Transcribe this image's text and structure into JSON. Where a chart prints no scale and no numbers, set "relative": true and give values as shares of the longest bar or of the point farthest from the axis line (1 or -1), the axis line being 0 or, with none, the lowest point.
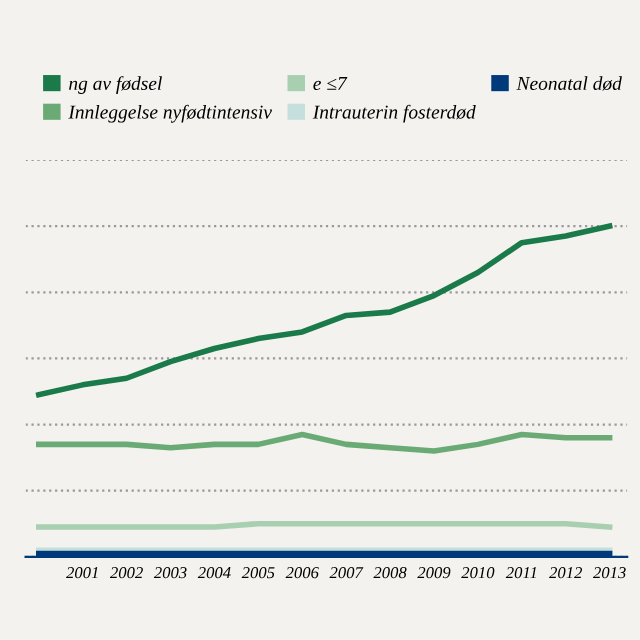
{
  "chart_data": {
    "type": "line",
    "relative": true,
    "grid": "y",
    "legend": "top",
    "marker": "none",
    "line_style": "solid",
    "categories": [
      null,
      "2001",
      "2002",
      "2003",
      "2004",
      "2005",
      "2006",
      "2007",
      "2008",
      "2009",
      "2010",
      "2011",
      "2012",
      "2013"
    ],
    "series": [
      {
        "name": "ng av fødsel",
        "color": "#1a7a4a",
        "values": [
          0.49,
          0.52,
          0.54,
          0.59,
          0.63,
          0.66,
          0.68,
          0.73,
          0.74,
          0.79,
          0.86,
          0.95,
          0.97,
          1.0
        ]
      },
      {
        "name": "Innleggelse nyfødtintensiv",
        "color": "#6aaa75",
        "values": [
          0.34,
          0.34,
          0.34,
          0.33,
          0.34,
          0.34,
          0.37,
          0.34,
          0.33,
          0.32,
          0.34,
          0.37,
          0.36,
          0.36
        ]
      },
      {
        "name": "e ≤7",
        "color": "#a8d0b0",
        "values": [
          0.09,
          0.09,
          0.09,
          0.09,
          0.09,
          0.1,
          0.1,
          0.1,
          0.1,
          0.1,
          0.1,
          0.1,
          0.1,
          0.09
        ]
      },
      {
        "name": "Intrauterin fosterdød",
        "color": "#c5e0dc",
        "values": [
          0.02,
          0.02,
          0.02,
          0.02,
          0.02,
          0.02,
          0.02,
          0.02,
          0.02,
          0.02,
          0.02,
          0.02,
          0.02,
          0.02
        ]
      },
      {
        "name": "Neonatal død",
        "color": "#003a7a",
        "values": [
          0.01,
          0.01,
          0.01,
          0.01,
          0.01,
          0.01,
          0.01,
          0.01,
          0.01,
          0.01,
          0.01,
          0.01,
          0.01,
          0.01
        ]
      }
    ]
  }
}
